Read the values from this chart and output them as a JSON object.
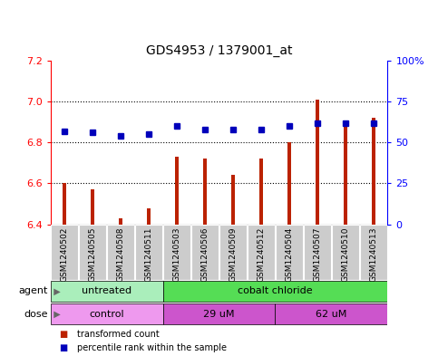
{
  "title": "GDS4953 / 1379001_at",
  "samples": [
    "GSM1240502",
    "GSM1240505",
    "GSM1240508",
    "GSM1240511",
    "GSM1240503",
    "GSM1240506",
    "GSM1240509",
    "GSM1240512",
    "GSM1240504",
    "GSM1240507",
    "GSM1240510",
    "GSM1240513"
  ],
  "bar_values": [
    6.6,
    6.57,
    6.43,
    6.48,
    6.73,
    6.72,
    6.64,
    6.72,
    6.8,
    7.01,
    6.9,
    6.92
  ],
  "percentile_values": [
    57,
    56,
    54,
    55,
    60,
    58,
    58,
    58,
    60,
    62,
    62,
    62
  ],
  "bar_bottom": 6.4,
  "ylim": [
    6.4,
    7.2
  ],
  "yticks": [
    6.4,
    6.6,
    6.8,
    7.0,
    7.2
  ],
  "right_yticks": [
    0,
    25,
    50,
    75,
    100
  ],
  "right_ylabels": [
    "0",
    "25",
    "50",
    "75",
    "100%"
  ],
  "bar_color": "#bb2200",
  "dot_color": "#0000bb",
  "plot_bg": "#ffffff",
  "agent_groups": [
    {
      "label": "untreated",
      "start": 0,
      "end": 4,
      "color": "#aaeebb"
    },
    {
      "label": "cobalt chloride",
      "start": 4,
      "end": 12,
      "color": "#55dd55"
    }
  ],
  "dose_groups": [
    {
      "label": "control",
      "start": 0,
      "end": 4,
      "color": "#ee99ee"
    },
    {
      "label": "29 uM",
      "start": 4,
      "end": 8,
      "color": "#cc55cc"
    },
    {
      "label": "62 uM",
      "start": 8,
      "end": 12,
      "color": "#cc55cc"
    }
  ],
  "legend_items": [
    {
      "label": "transformed count",
      "color": "#bb2200"
    },
    {
      "label": "percentile rank within the sample",
      "color": "#0000bb"
    }
  ],
  "bar_width": 0.12,
  "tick_fontsize": 8,
  "title_fontsize": 10,
  "label_fontsize": 8,
  "sample_fontsize": 6.5
}
